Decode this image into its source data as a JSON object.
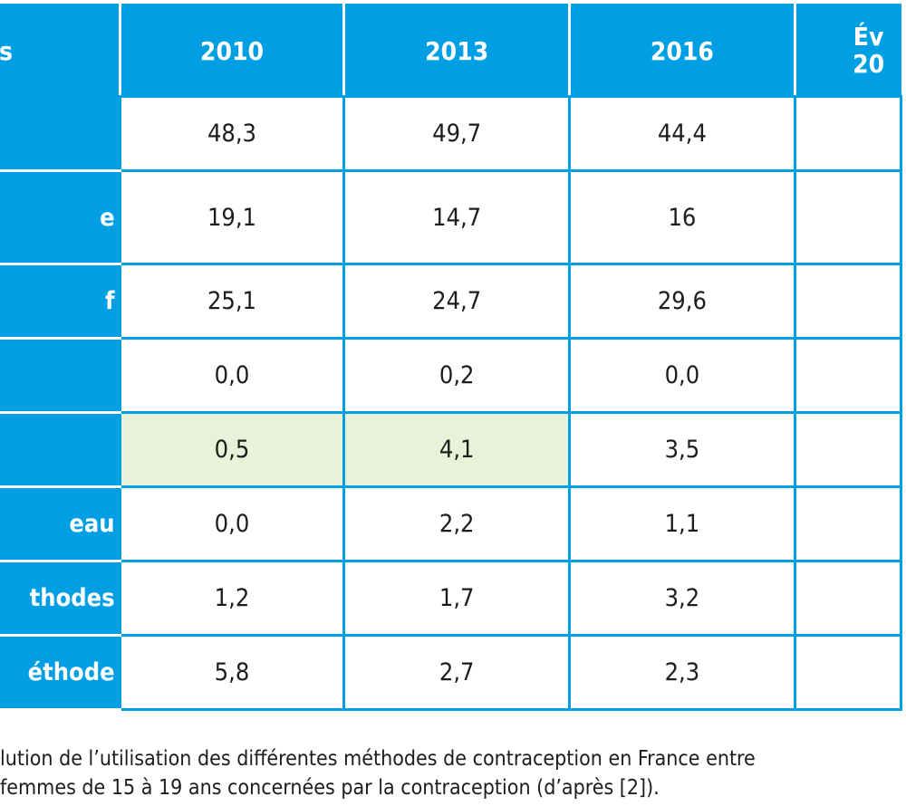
{
  "table": {
    "header": {
      "label_fragment": "s",
      "years": [
        "2010",
        "2013",
        "2016"
      ],
      "evolution_fragment_line1": "Év",
      "evolution_fragment_line2": "20"
    },
    "rows": [
      {
        "label": "",
        "values": [
          "48,3",
          "49,7",
          "44,4"
        ],
        "highlight": [
          false,
          false,
          false
        ]
      },
      {
        "label": "e",
        "values": [
          "19,1",
          "14,7",
          "16"
        ],
        "highlight": [
          false,
          false,
          false
        ]
      },
      {
        "label": "f",
        "values": [
          "25,1",
          "24,7",
          "29,6"
        ],
        "highlight": [
          false,
          false,
          false
        ]
      },
      {
        "label": "",
        "values": [
          "0,0",
          "0,2",
          "0,0"
        ],
        "highlight": [
          false,
          false,
          false
        ]
      },
      {
        "label": "",
        "values": [
          "0,5",
          "4,1",
          "3,5"
        ],
        "highlight": [
          true,
          true,
          false
        ]
      },
      {
        "label": "eau",
        "values": [
          "0,0",
          "2,2",
          "1,1"
        ],
        "highlight": [
          false,
          false,
          false
        ]
      },
      {
        "label": "thodes",
        "values": [
          "1,2",
          "1,7",
          "3,2"
        ],
        "highlight": [
          false,
          false,
          false
        ]
      },
      {
        "label": "éthode",
        "values": [
          "5,8",
          "2,7",
          "2,3"
        ],
        "highlight": [
          false,
          false,
          false
        ]
      }
    ]
  },
  "caption": {
    "line1": "lution de l’utilisation des différentes méthodes de contraception en France entre",
    "line2": "femmes de 15 à 19 ans concernées par la contraception (d’après [2])."
  },
  "colors": {
    "header_blue": "#009fe3",
    "highlight_green": "#e8f2d8",
    "text": "#1d1d1b"
  }
}
